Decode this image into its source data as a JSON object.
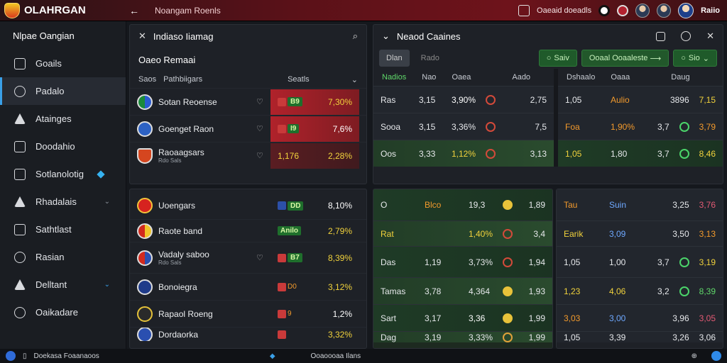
{
  "topbar": {
    "brand": "OLAHRGAN",
    "title": "Noangam Roenls",
    "right_text": "Oaeaid doeadls",
    "user": "Raiio"
  },
  "sidebar": {
    "title": "Nlpae Oangian",
    "items": [
      {
        "label": "Goails"
      },
      {
        "label": "Padalo"
      },
      {
        "label": "Atainges"
      },
      {
        "label": "Doodahio"
      },
      {
        "label": "Sotlanolotig"
      },
      {
        "label": "Rhadalais"
      },
      {
        "label": "Sathtlast"
      },
      {
        "label": "Rasian"
      },
      {
        "label": "Delltant"
      },
      {
        "label": "Oaikadare"
      }
    ]
  },
  "left_panel": {
    "header": "Indiaso Iiamag",
    "subtitle": "Oaeo Remaai",
    "col1": "Saos",
    "col2": "Pathbiigars",
    "col3": "Seatls",
    "rows": [
      {
        "name": "Sotan Reoense",
        "odds": "7,30%",
        "badge": "B9"
      },
      {
        "name": "Goenget Raon",
        "odds": "7,6%",
        "badge": "I9"
      },
      {
        "name": "Raoaagsars",
        "small": "Rdo Sals",
        "left": "1,176",
        "odds": "2,28%"
      }
    ]
  },
  "left_bottom": {
    "rows": [
      {
        "name": "Uoengars",
        "badge": "DD",
        "odds": "8,10%"
      },
      {
        "name": "Raote band",
        "badge": "Anilo",
        "odds": "2,79%"
      },
      {
        "name": "Vadaly saboo",
        "small": "Rdo Sals",
        "badge": "B7",
        "odds": "8,39%"
      },
      {
        "name": "Bonoiegra",
        "badge": "D0",
        "odds": "3,12%"
      },
      {
        "name": "Rapaol Roeng",
        "badge": "9",
        "odds": "1,2%"
      },
      {
        "name": "Dordaorka",
        "badge": "",
        "odds": "3,32%"
      }
    ]
  },
  "right_panel": {
    "header": "Neaod Caaines",
    "buttons": [
      "Dlan",
      "Rado",
      "Saiv",
      "Ooaal Ooaaleste",
      "Sio"
    ],
    "head_left": [
      "Nadios",
      "Nao",
      "Oaea",
      "Aado"
    ],
    "head_right": [
      "Dshaalo",
      "Oaaa",
      "Daug"
    ],
    "rows": [
      {
        "a": "Ras",
        "b": "3,15",
        "c": "3,90%",
        "d": "2,75",
        "e": "1,05",
        "f": "Aulio",
        "g": "3896",
        "h": "7,15"
      },
      {
        "a": "Sooa",
        "b": "3,15",
        "c": "3,36%",
        "d": "7,5",
        "e": "Foa",
        "f": "1,90%",
        "g": "3,7",
        "h": "3,79"
      },
      {
        "a": "Oos",
        "b": "3,33",
        "c": "1,12%",
        "d": "3,13",
        "e": "1,05",
        "f": "1,80",
        "g": "3,7",
        "h": "8,46"
      }
    ]
  },
  "mid_bottom": {
    "rows": [
      {
        "a": "O",
        "b": "Blco",
        "c": "19,3",
        "d": "1,89"
      },
      {
        "a": "Rat",
        "b": "",
        "c": "1,40%",
        "d": "3,4"
      },
      {
        "a": "Das",
        "b": "1,19",
        "c": "3,73%",
        "d": "1,94"
      },
      {
        "a": "Tamas",
        "b": "3,78",
        "c": "4,364",
        "d": "1,93"
      },
      {
        "a": "Sart",
        "b": "3,17",
        "c": "3,36",
        "d": "1,99"
      },
      {
        "a": "Dag",
        "b": "3,19",
        "c": "3,33%",
        "d": "1,99"
      }
    ]
  },
  "right_bottom": {
    "rows": [
      {
        "a": "Tau",
        "b": "Suin",
        "c": "3,25",
        "d": "3,76"
      },
      {
        "a": "Earik",
        "b": "3,09",
        "c": "3,50",
        "d": "3,13"
      },
      {
        "a": "1,05",
        "b": "1,00",
        "c": "3,7",
        "d": "3,19"
      },
      {
        "a": "1,23",
        "b": "4,06",
        "c": "3,2",
        "d": "8,39"
      },
      {
        "a": "3,03",
        "b": "3,00",
        "c": "3,96",
        "d": "3,05"
      },
      {
        "a": "1,05",
        "b": "3,39",
        "c": "3,26",
        "d": "3,06"
      }
    ]
  },
  "statusbar": {
    "left": "Doekasa Foaanaoos",
    "center": "Ooaoooaa Ilans"
  }
}
